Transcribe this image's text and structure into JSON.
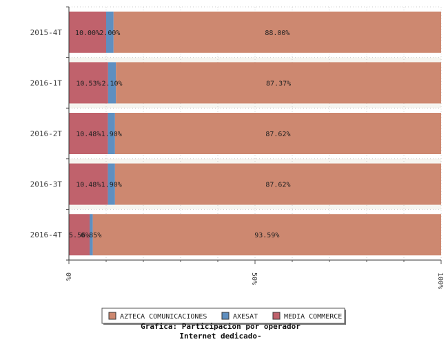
{
  "chart_data": {
    "type": "bar",
    "orientation": "horizontal",
    "stacked": true,
    "categories": [
      "2015-4T",
      "2016-1T",
      "2016-2T",
      "2016-3T",
      "2016-4T"
    ],
    "series": [
      {
        "name": "MEDIA COMMERCE",
        "values": [
          10.0,
          10.53,
          10.48,
          10.48,
          5.56
        ],
        "labels": [
          "10.00%",
          "10.53%",
          "10.48%",
          "10.48%",
          "5.56%"
        ],
        "color": "#c0626c"
      },
      {
        "name": "AXESAT",
        "values": [
          2.0,
          2.1,
          1.9,
          1.9,
          0.85
        ],
        "labels": [
          "2.00%",
          "2.10%",
          "1.90%",
          "1.90%",
          "0.85%"
        ],
        "color": "#5f8fc0"
      },
      {
        "name": "AZTECA COMUNICACIONES",
        "values": [
          88.0,
          87.37,
          87.62,
          87.62,
          93.59
        ],
        "labels": [
          "88.00%",
          "87.37%",
          "87.62%",
          "87.62%",
          "93.59%"
        ],
        "color": "#cd8870"
      }
    ],
    "legend_order": [
      "AZTECA COMUNICACIONES",
      "AXESAT",
      "MEDIA COMMERCE"
    ],
    "x_ticks": [
      "0%",
      "50%",
      "100%"
    ],
    "xlim": [
      0,
      100
    ],
    "title_lines": [
      "Grafica: Participacion por operador",
      "Internet dedicado-"
    ],
    "legend_position": "bottom",
    "grid": true
  }
}
